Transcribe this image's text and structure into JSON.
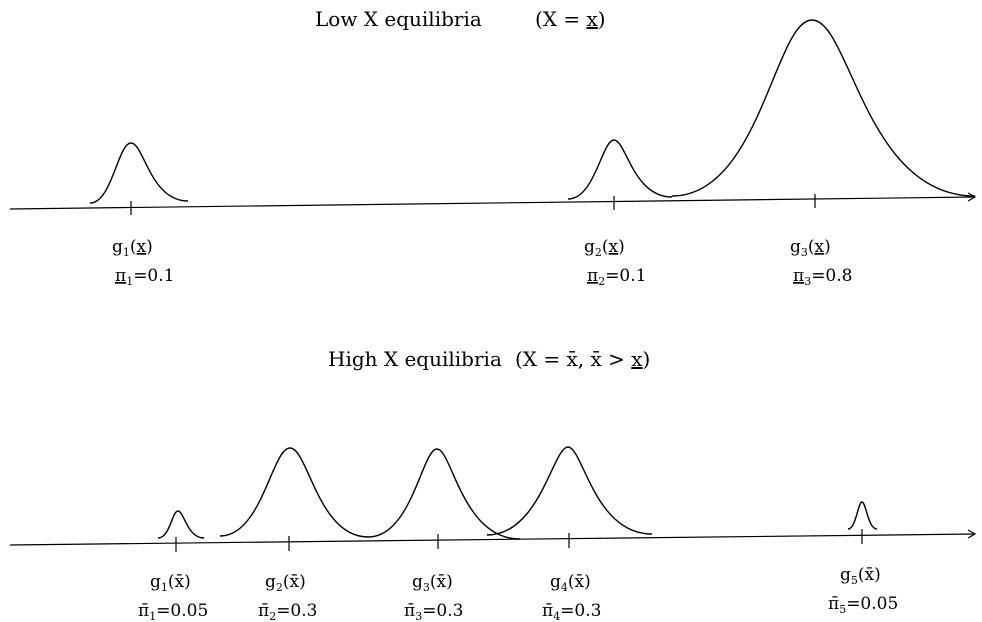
{
  "low_panel": {
    "title": "Low X equilibria",
    "title_eq": "(X = x)",
    "items": [
      {
        "g": "g",
        "g_sub": "1",
        "arg": "x",
        "pi": "π",
        "pi_sub": "1",
        "pi_val": "=0.1"
      },
      {
        "g": "g",
        "g_sub": "2",
        "arg": "x",
        "pi": "π",
        "pi_sub": "2",
        "pi_val": "=0.1"
      },
      {
        "g": "g",
        "g_sub": "3",
        "arg": "x",
        "pi": "π",
        "pi_sub": "3",
        "pi_val": "=0.8"
      }
    ]
  },
  "high_panel": {
    "title": "High X equilibria",
    "title_eq": "(X = x̄, x̄ > x)",
    "items": [
      {
        "g": "g",
        "g_sub": "1",
        "arg": "x̄",
        "pi": "π̄",
        "pi_sub": "1",
        "pi_val": "=0.05"
      },
      {
        "g": "g",
        "g_sub": "2",
        "arg": "x̄",
        "pi": "π̄",
        "pi_sub": "2",
        "pi_val": "=0.3"
      },
      {
        "g": "g",
        "g_sub": "3",
        "arg": "x̄",
        "pi": "π̄",
        "pi_sub": "3",
        "pi_val": "=0.3"
      },
      {
        "g": "g",
        "g_sub": "4",
        "arg": "x̄",
        "pi": "π̄",
        "pi_sub": "4",
        "pi_val": "=0.3"
      },
      {
        "g": "g",
        "g_sub": "5",
        "arg": "x̄",
        "pi": "π̄",
        "pi_sub": "5",
        "pi_val": "=0.05"
      }
    ]
  }
}
